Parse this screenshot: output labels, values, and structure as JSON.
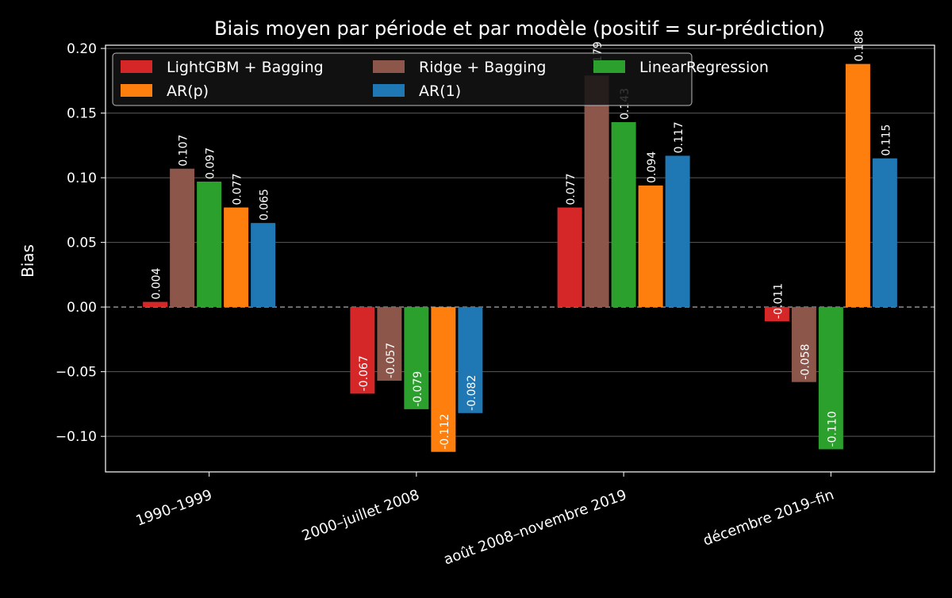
{
  "chart_data": {
    "type": "bar",
    "title": "Biais moyen par période et par modèle (positif = sur-prédiction)",
    "xlabel": "",
    "ylabel": "Bias",
    "categories": [
      "1990–1999",
      "2000–juillet 2008",
      "août 2008–novembre 2019",
      "décembre 2019–fin"
    ],
    "series": [
      {
        "name": "LightGBM + Bagging",
        "color": "#d62728",
        "values": [
          0.004,
          -0.067,
          0.077,
          -0.011
        ],
        "labels": [
          "0.004",
          "-0.067",
          "0.077",
          "-0.011"
        ]
      },
      {
        "name": "Ridge + Bagging",
        "color": "#8c564b",
        "values": [
          0.107,
          -0.057,
          0.179,
          -0.058
        ],
        "labels": [
          "0.107",
          "-0.057",
          "0.179",
          "-0.058"
        ]
      },
      {
        "name": "LinearRegression",
        "color": "#2ca02c",
        "values": [
          0.097,
          -0.079,
          0.143,
          -0.11
        ],
        "labels": [
          "0.097",
          "-0.079",
          "0.143",
          "-0.110"
        ]
      },
      {
        "name": "AR(p)",
        "color": "#ff7f0e",
        "values": [
          0.077,
          -0.112,
          0.094,
          0.188
        ],
        "labels": [
          "0.077",
          "-0.112",
          "0.094",
          "0.188"
        ]
      },
      {
        "name": "AR(1)",
        "color": "#1f77b4",
        "values": [
          0.065,
          -0.082,
          0.117,
          0.115
        ],
        "labels": [
          "0.065",
          "-0.082",
          "0.117",
          "0.115"
        ]
      }
    ],
    "ylim": [
      -0.1275,
      0.2025
    ],
    "yticks": [
      0.2,
      0.15,
      0.1,
      0.05,
      0.0,
      -0.05,
      -0.1
    ],
    "ytick_labels": [
      "0.20",
      "0.15",
      "0.10",
      "0.05",
      "0.00",
      "−0.05",
      "−0.10"
    ],
    "grid": true,
    "zero_line": "dashed",
    "legend": "top-left"
  }
}
